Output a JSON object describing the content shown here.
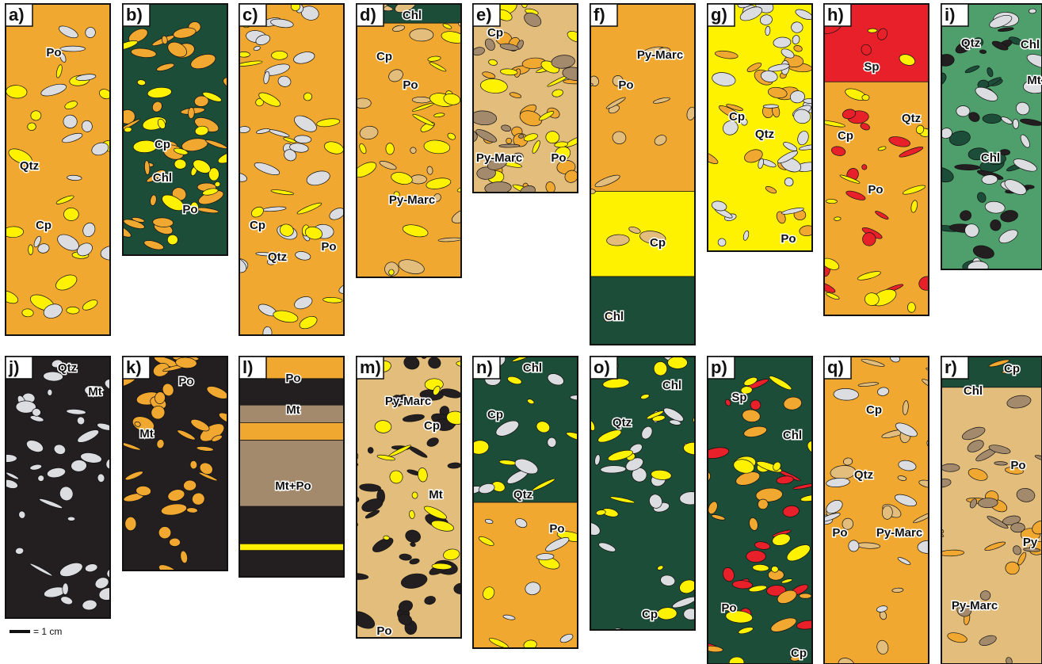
{
  "panels": [
    {
      "letter": "a)",
      "labels": [
        "Po",
        "Qtz",
        "Cp"
      ]
    },
    {
      "letter": "b)",
      "labels": [
        "Cp",
        "Chl",
        "Po"
      ]
    },
    {
      "letter": "c)",
      "labels": [
        "Cp",
        "Qtz",
        "Po"
      ]
    },
    {
      "letter": "d)",
      "labels": [
        "Chl",
        "Cp",
        "Po",
        "Py-Marc"
      ]
    },
    {
      "letter": "e)",
      "labels": [
        "Cp",
        "Py-Marc",
        "Po"
      ]
    },
    {
      "letter": "f)",
      "labels": [
        "Py-Marc",
        "Po",
        "Cp",
        "Chl"
      ]
    },
    {
      "letter": "g)",
      "labels": [
        "Cp",
        "Qtz",
        "Po"
      ]
    },
    {
      "letter": "h)",
      "labels": [
        "Sp",
        "Qtz",
        "Cp",
        "Po"
      ]
    },
    {
      "letter": "i)",
      "labels": [
        "Qtz",
        "Chl",
        "Mt",
        "Chl"
      ]
    },
    {
      "letter": "j)",
      "labels": [
        "Qtz",
        "Mt"
      ]
    },
    {
      "letter": "k)",
      "labels": [
        "Po",
        "Mt"
      ]
    },
    {
      "letter": "l)",
      "labels": [
        "Po",
        "Mt",
        "Mt+Po"
      ]
    },
    {
      "letter": "m)",
      "labels": [
        "Py-Marc",
        "Cp",
        "Mt",
        "Po"
      ]
    },
    {
      "letter": "n)",
      "labels": [
        "Chl",
        "Cp",
        "Qtz",
        "Po"
      ]
    },
    {
      "letter": "o)",
      "labels": [
        "Chl",
        "Qtz",
        "Cp"
      ]
    },
    {
      "letter": "p)",
      "labels": [
        "Sp",
        "Chl",
        "Po",
        "Cp"
      ]
    },
    {
      "letter": "q)",
      "labels": [
        "Cp",
        "Qtz",
        "Po",
        "Py-Marc"
      ]
    },
    {
      "letter": "r)",
      "labels": [
        "Cp",
        "Chl",
        "Po",
        "Py",
        "Py-Marc"
      ]
    }
  ],
  "scale_bar": {
    "label": "= 1 cm"
  }
}
